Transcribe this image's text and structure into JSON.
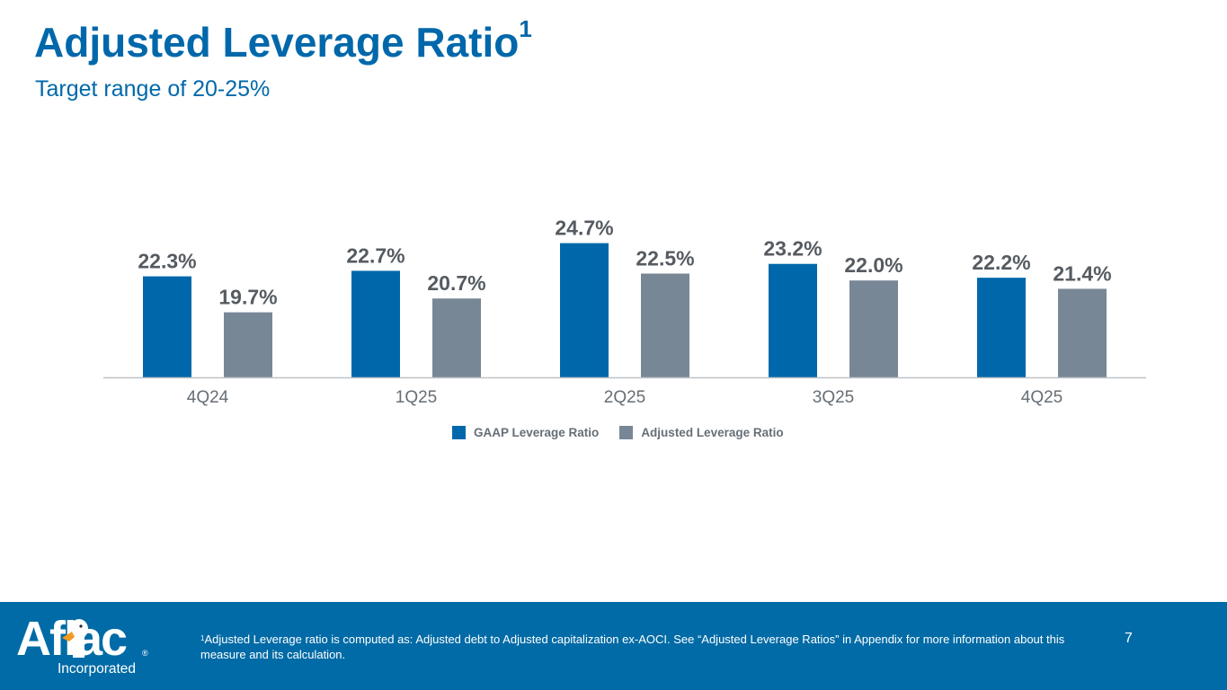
{
  "header": {
    "title": "Adjusted Leverage Ratio",
    "title_footnote_marker": "1",
    "subtitle": "Target range of 20-25%"
  },
  "colors": {
    "brand_blue": "#0068AA",
    "gaap_series": "#0068AA",
    "adjusted_series": "#788796",
    "data_label": "#555B61",
    "axis_label": "#666E76",
    "footer_background": "#006BA6"
  },
  "chart_data": {
    "type": "bar",
    "title": "Adjusted Leverage Ratio",
    "subtitle": "Target range of 20-25%",
    "xlabel": "",
    "ylabel": "",
    "categories": [
      "4Q24",
      "1Q25",
      "2Q25",
      "3Q25",
      "4Q25"
    ],
    "series": [
      {
        "name": "GAAP Leverage Ratio",
        "values": [
          22.3,
          22.7,
          24.7,
          23.2,
          22.2
        ],
        "labels": [
          "22.3%",
          "22.7%",
          "24.7%",
          "23.2%",
          "22.2%"
        ]
      },
      {
        "name": "Adjusted Leverage Ratio",
        "values": [
          19.7,
          20.7,
          22.5,
          22.0,
          21.4
        ],
        "labels": [
          "19.7%",
          "20.7%",
          "22.5%",
          "22.0%",
          "21.4%"
        ]
      }
    ],
    "unit": "%",
    "ylim": [
      15,
      25.5
    ],
    "ylim_note": "estimated; no y-axis is drawn and the axis appears truncated",
    "grid": false,
    "y_axis_visible": false,
    "legend": "bottom-center"
  },
  "legend": {
    "items": [
      {
        "label": "GAAP Leverage Ratio"
      },
      {
        "label": "Adjusted Leverage Ratio"
      }
    ]
  },
  "footer": {
    "logo": {
      "wordmark": "Aflac",
      "registered": "®",
      "subtitle": "Incorporated",
      "icon": "duck-icon"
    },
    "footnote_marker": "1",
    "footnote_text": "Adjusted Leverage ratio is computed as: Adjusted debt to Adjusted capitalization ex-AOCI. See “Adjusted Leverage Ratios” in Appendix for more information about this measure and its calculation.",
    "page_number": "7"
  }
}
